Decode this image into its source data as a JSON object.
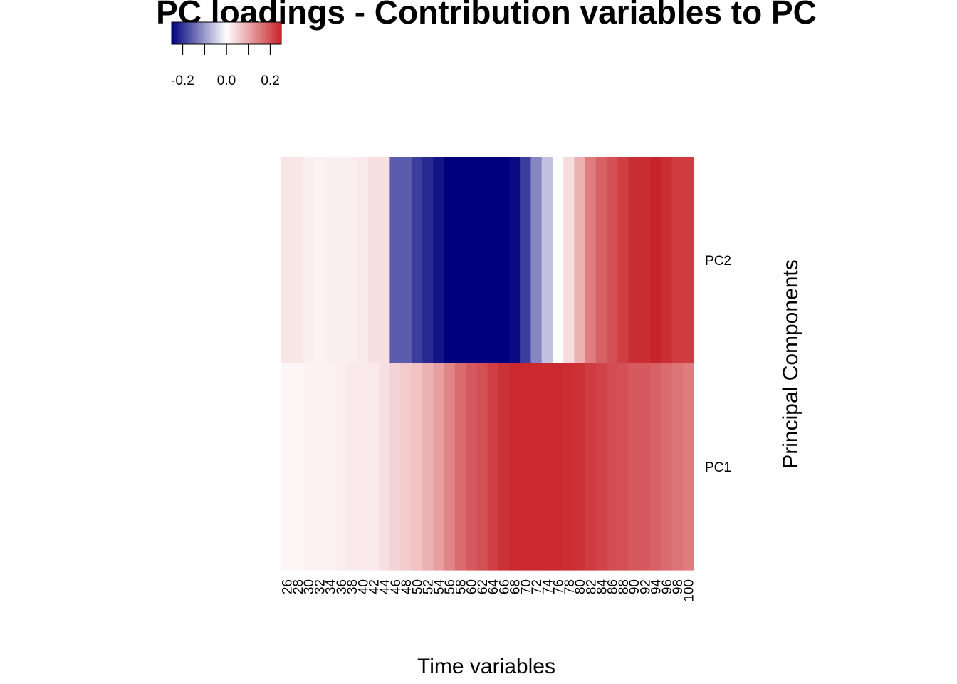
{
  "chart_data": {
    "type": "heatmap",
    "title": "PC loadings - Contribution variables to PC",
    "xlabel": "Time variables",
    "ylabel": "Principal Components",
    "x_tick_labels": [
      "26",
      "28",
      "30",
      "32",
      "34",
      "36",
      "38",
      "40",
      "42",
      "44",
      "46",
      "48",
      "50",
      "52",
      "54",
      "56",
      "58",
      "60",
      "62",
      "64",
      "66",
      "68",
      "70",
      "72",
      "74",
      "76",
      "78",
      "80",
      "82",
      "84",
      "86",
      "88",
      "90",
      "92",
      "94",
      "96",
      "98",
      "100"
    ],
    "rows": [
      {
        "name": "PC2",
        "values": [
          0.03,
          0.03,
          0.02,
          0.015,
          0.02,
          0.02,
          0.02,
          0.025,
          0.035,
          0.035,
          -0.16,
          -0.16,
          -0.19,
          -0.21,
          -0.23,
          -0.255,
          -0.29,
          -0.295,
          -0.29,
          -0.275,
          -0.255,
          -0.24,
          -0.19,
          -0.12,
          -0.06,
          0.0,
          0.04,
          0.09,
          0.15,
          0.18,
          0.2,
          0.22,
          0.24,
          0.24,
          0.25,
          0.24,
          0.225,
          0.225
        ]
      },
      {
        "name": "PC1",
        "values": [
          0.01,
          0.01,
          0.015,
          0.015,
          0.015,
          0.02,
          0.025,
          0.025,
          0.025,
          0.035,
          0.05,
          0.06,
          0.07,
          0.09,
          0.11,
          0.14,
          0.17,
          0.19,
          0.2,
          0.22,
          0.235,
          0.245,
          0.245,
          0.245,
          0.245,
          0.245,
          0.24,
          0.235,
          0.225,
          0.215,
          0.205,
          0.2,
          0.19,
          0.19,
          0.18,
          0.17,
          0.16,
          0.15
        ]
      }
    ],
    "color_scale": {
      "low_color": "#00007f",
      "mid_color": "#ffffff",
      "high_color": "#c8252b",
      "range": [
        -0.25,
        0.25
      ],
      "tick_values": [
        -0.2,
        -0.1,
        0.0,
        0.1,
        0.2
      ],
      "tick_labels": [
        "-0.2",
        "0.0",
        "0.2"
      ],
      "labeled_tick_values": [
        -0.2,
        0.0,
        0.2
      ]
    }
  }
}
